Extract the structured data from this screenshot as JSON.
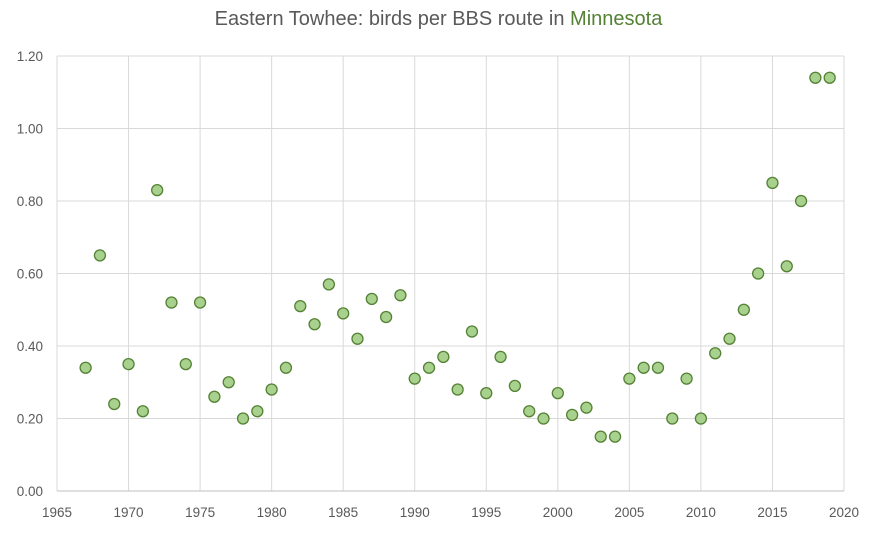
{
  "chart_data": {
    "type": "scatter",
    "title": "Eastern Towhee: birds per BBS route in Minnesota",
    "title_parts": [
      "Eastern Towhee: birds per BBS route in ",
      "Minnesota"
    ],
    "xlabel": "",
    "ylabel": "",
    "xlim": [
      1965,
      2020
    ],
    "ylim": [
      0,
      1.2
    ],
    "x_ticks": [
      "1965",
      "1970",
      "1975",
      "1980",
      "1985",
      "1990",
      "1995",
      "2000",
      "2005",
      "2010",
      "2015",
      "2020"
    ],
    "y_ticks": [
      "0.00",
      "0.20",
      "0.40",
      "0.60",
      "0.80",
      "1.00",
      "1.20"
    ],
    "grid": true,
    "legend": "none",
    "colors": {
      "marker_fill": "#a9d18e",
      "marker_stroke": "#548235",
      "title_highlight": "#548235",
      "grid": "#d9d9d9",
      "text": "#595959"
    },
    "series": [
      {
        "name": "Eastern Towhee",
        "x": [
          1967,
          1968,
          1969,
          1970,
          1971,
          1972,
          1973,
          1974,
          1975,
          1976,
          1977,
          1978,
          1979,
          1980,
          1981,
          1982,
          1983,
          1984,
          1985,
          1986,
          1987,
          1988,
          1989,
          1990,
          1991,
          1992,
          1993,
          1994,
          1995,
          1996,
          1997,
          1998,
          1999,
          2000,
          2001,
          2002,
          2003,
          2004,
          2005,
          2006,
          2007,
          2008,
          2009,
          2010,
          2011,
          2012,
          2013,
          2014,
          2015,
          2016,
          2017,
          2018,
          2019
        ],
        "y": [
          0.34,
          0.65,
          0.24,
          0.35,
          0.22,
          0.83,
          0.52,
          0.35,
          0.52,
          0.26,
          0.3,
          0.2,
          0.22,
          0.28,
          0.34,
          0.51,
          0.46,
          0.57,
          0.49,
          0.42,
          0.53,
          0.48,
          0.54,
          0.31,
          0.34,
          0.37,
          0.28,
          0.44,
          0.27,
          0.37,
          0.29,
          0.22,
          0.2,
          0.27,
          0.21,
          0.23,
          0.15,
          0.15,
          0.31,
          0.34,
          0.34,
          0.2,
          0.31,
          0.2,
          0.38,
          0.42,
          0.5,
          0.6,
          0.85,
          0.62,
          0.8,
          1.14,
          1.14
        ]
      }
    ]
  }
}
